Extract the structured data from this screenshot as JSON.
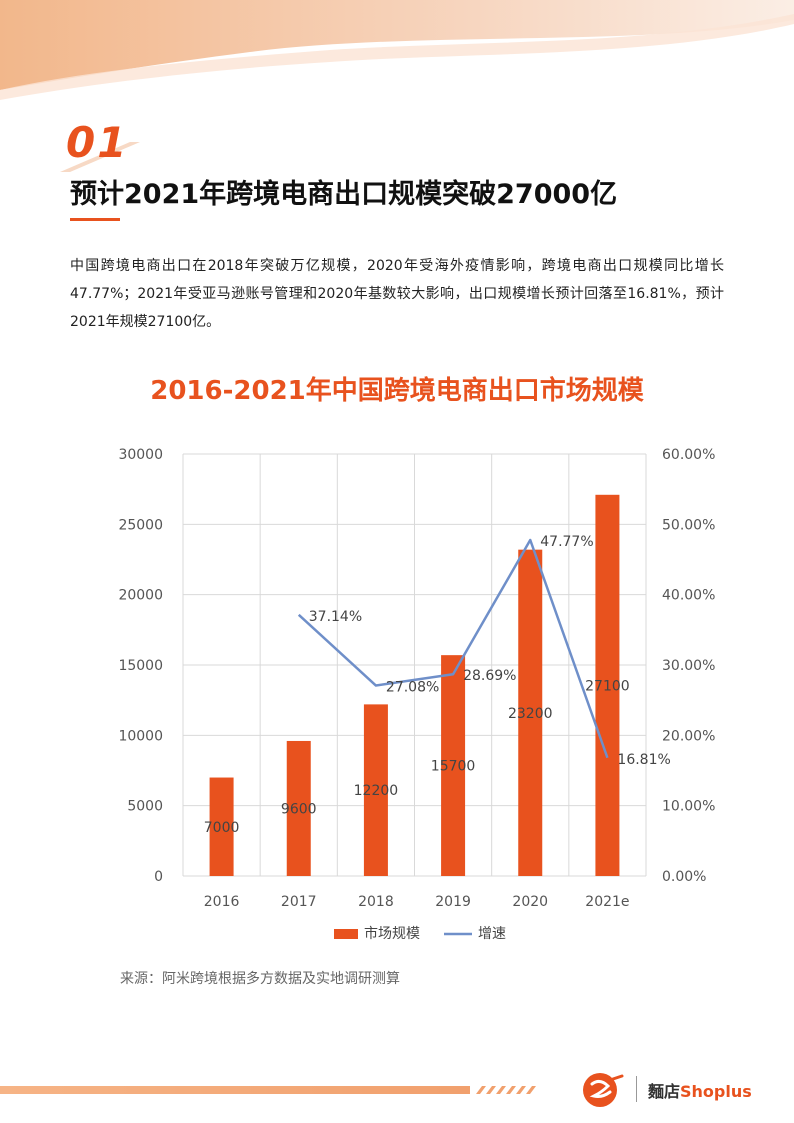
{
  "section": {
    "number": "01",
    "heading": "预计2021年跨境电商出口规模突破27000亿",
    "body": "中国跨境电商出口在2018年突破万亿规模，2020年受海外疫情影响，跨境电商出口规模同比增长47.77%；2021年受亚马逊账号管理和2020年基数较大影响，出口规模增长预计回落至16.81%，预计2021年规模27100亿。"
  },
  "source": "来源：阿米跨境根据多方数据及实地调研测算",
  "footer": {
    "brand_cn": "麵店",
    "brand_en": "Shoplus"
  },
  "colors": {
    "accent": "#e8521e",
    "line": "#6f8fc9",
    "grid": "#d9d9d9"
  },
  "chart_data": {
    "type": "bar",
    "title": "2016-2021年中国跨境电商出口市场规模",
    "categories": [
      "2016",
      "2017",
      "2018",
      "2019",
      "2020",
      "2021e"
    ],
    "series": [
      {
        "name": "市场规模",
        "type": "bar",
        "axis": "left",
        "values": [
          7000,
          9600,
          12200,
          15700,
          23200,
          27100
        ],
        "labels": [
          "7000",
          "9600",
          "12200",
          "15700",
          "23200",
          "27100"
        ]
      },
      {
        "name": "增速",
        "type": "line",
        "axis": "right",
        "values": [
          null,
          37.14,
          27.08,
          28.69,
          47.77,
          16.81
        ],
        "labels": [
          "",
          "37.14%",
          "27.08%",
          "28.69%",
          "47.77%",
          "16.81%"
        ]
      }
    ],
    "y_left": {
      "min": 0,
      "max": 30000,
      "ticks": [
        "0",
        "5000",
        "10000",
        "15000",
        "20000",
        "25000",
        "30000"
      ]
    },
    "y_right": {
      "min": 0,
      "max": 60,
      "ticks": [
        "0.00%",
        "10.00%",
        "20.00%",
        "30.00%",
        "40.00%",
        "50.00%",
        "60.00%"
      ]
    },
    "grid": true,
    "legend_position": "bottom"
  }
}
